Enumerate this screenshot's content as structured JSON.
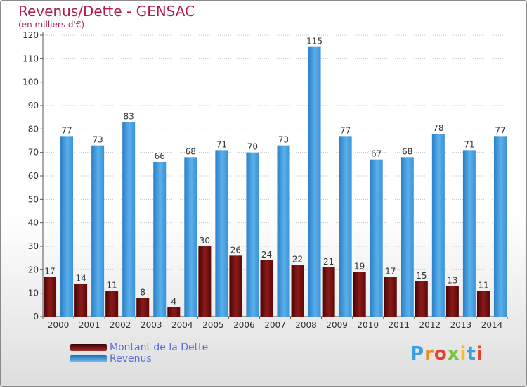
{
  "chart_data": {
    "type": "bar",
    "title": "Revenus/Dette - GENSAC",
    "subtitle": "(en milliers d'€)",
    "categories": [
      "2000",
      "2001",
      "2002",
      "2003",
      "2004",
      "2005",
      "2006",
      "2007",
      "2008",
      "2009",
      "2010",
      "2011",
      "2012",
      "2013",
      "2014"
    ],
    "series": [
      {
        "name": "Montant de la Dette",
        "color": "#7a1414",
        "values": [
          17,
          14,
          11,
          8,
          4,
          30,
          26,
          24,
          22,
          21,
          19,
          17,
          15,
          13,
          11
        ]
      },
      {
        "name": "Revenus",
        "color": "#3d98dc",
        "values": [
          77,
          73,
          83,
          66,
          68,
          71,
          70,
          73,
          115,
          77,
          67,
          68,
          78,
          71,
          77
        ]
      }
    ],
    "ylim": [
      0,
      120
    ],
    "yticks": [
      0,
      10,
      20,
      30,
      40,
      50,
      60,
      70,
      80,
      90,
      100,
      110,
      120
    ],
    "grid": true,
    "legend": "bottom-left"
  },
  "logo": {
    "text": "Proxiti"
  }
}
